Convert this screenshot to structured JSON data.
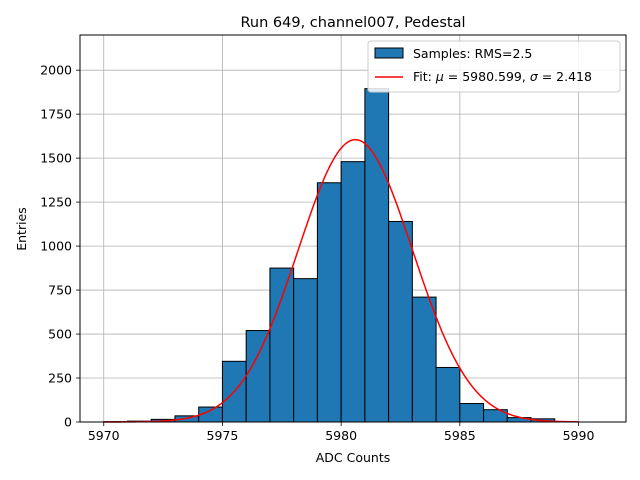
{
  "chart_data": {
    "type": "bar",
    "title": "Run 649, channel007, Pedestal",
    "xlabel": "ADC Counts",
    "ylabel": "Entries",
    "xlim": [
      5969,
      5992
    ],
    "ylim": [
      0,
      2200
    ],
    "xticks": [
      5970,
      5975,
      5980,
      5985,
      5990
    ],
    "yticks": [
      0,
      250,
      500,
      750,
      1000,
      1250,
      1500,
      1750,
      2000
    ],
    "grid": true,
    "legend_position": "top-right",
    "histogram": {
      "name": "Samples: RMS=2.5",
      "color": "#1f77b4",
      "edgecolor": "#000000",
      "bin_edges": [
        5970,
        5971,
        5972,
        5973,
        5974,
        5975,
        5976,
        5977,
        5978,
        5979,
        5980,
        5981,
        5982,
        5983,
        5984,
        5985,
        5986,
        5987,
        5988,
        5989
      ],
      "counts": [
        2,
        5,
        15,
        35,
        85,
        345,
        520,
        875,
        815,
        1360,
        1480,
        1895,
        1140,
        710,
        310,
        105,
        70,
        25,
        18
      ]
    },
    "fit": {
      "name": "Fit: $\\mu$ = 5980.599, $\\sigma$ = 2.418",
      "mu": 5980.599,
      "sigma": 2.418,
      "amplitude": 1605,
      "color": "#ff0000"
    }
  }
}
